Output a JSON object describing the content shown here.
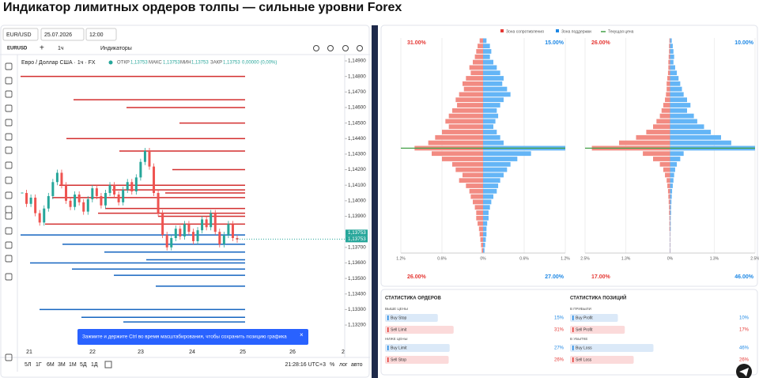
{
  "page_title": "Индикатор лимитных ордеров толпы — сильные уровни Forex",
  "price_chart": {
    "toolbar": {
      "pair": "EUR/USD",
      "date": "25.07.2026",
      "time": "12:00",
      "symbol": "EURUSD",
      "interval": "1ч",
      "indicators": "Индикаторы"
    },
    "legend": {
      "name": "Евро / Доллар США · 1ч · FX",
      "open_label": "ОТКР",
      "open": "1,13753",
      "high_label": "МАКС",
      "high": "1,13753",
      "low_label": "МИН",
      "low": "1,13753",
      "close_label": "ЗАКР",
      "close": "1,13753",
      "change": "0,00000 (0,00%)"
    },
    "price_ticks": [
      {
        "value": 1.149,
        "label": "1,14900"
      },
      {
        "value": 1.148,
        "label": "1,14800"
      },
      {
        "value": 1.147,
        "label": "1,14700"
      },
      {
        "value": 1.146,
        "label": "1,14600"
      },
      {
        "value": 1.145,
        "label": "1,14500"
      },
      {
        "value": 1.144,
        "label": "1,14400"
      },
      {
        "value": 1.143,
        "label": "1,14300"
      },
      {
        "value": 1.142,
        "label": "1,14200"
      },
      {
        "value": 1.141,
        "label": "1,14100"
      },
      {
        "value": 1.14,
        "label": "1,14000"
      },
      {
        "value": 1.139,
        "label": "1,13900"
      },
      {
        "value": 1.137,
        "label": "1,13700"
      },
      {
        "value": 1.136,
        "label": "1,13600"
      },
      {
        "value": 1.135,
        "label": "1,13500"
      },
      {
        "value": 1.134,
        "label": "1,13400"
      },
      {
        "value": 1.133,
        "label": "1,13300"
      },
      {
        "value": 1.132,
        "label": "1,13200"
      }
    ],
    "dates": [
      "21",
      "22",
      "23",
      "24",
      "25",
      "26",
      "2"
    ],
    "current_price": {
      "value": 1.13753,
      "label": "1,13753"
    },
    "closes": [
      1.1405,
      1.1398,
      1.1402,
      1.1392,
      1.1386,
      1.1395,
      1.1403,
      1.1412,
      1.1418,
      1.141,
      1.14,
      1.1396,
      1.1404,
      1.1399,
      1.1393,
      1.1401,
      1.1408,
      1.1403,
      1.1397,
      1.1405,
      1.141,
      1.1404,
      1.1399,
      1.1407,
      1.1412,
      1.1406,
      1.1415,
      1.1425,
      1.1432,
      1.1422,
      1.1405,
      1.1392,
      1.1378,
      1.137,
      1.1376,
      1.1382,
      1.1377,
      1.1385,
      1.138,
      1.1374,
      1.1381,
      1.1388,
      1.1383,
      1.1392,
      1.138,
      1.1372,
      1.1378,
      1.1385,
      1.1376,
      1.1375
    ],
    "sell_levels": [
      1.148,
      1.1465,
      1.146,
      1.145,
      1.144,
      1.1432,
      1.142,
      1.141,
      1.1407,
      1.1405,
      1.1402,
      1.1395,
      1.139,
      1.1385,
      1.1392
    ],
    "buy_levels": [
      1.1378,
      1.1372,
      1.1367,
      1.1362,
      1.136,
      1.1356,
      1.1352,
      1.1345,
      1.133,
      1.1325,
      1.1322
    ],
    "hint": "Зажмите и держите Ctrl во время масштабирования, чтобы сохранить позицию графика",
    "periods": [
      "5Л",
      "1Г",
      "6М",
      "3М",
      "1М",
      "5Д",
      "1Д"
    ],
    "clock": "21:28:16 UTC+3",
    "scale_buttons": [
      "%",
      "лог",
      "авто"
    ]
  },
  "order_book": {
    "legend": [
      "Зона сопротивления",
      "Зона поддержки",
      "Текущая цена"
    ],
    "charts": [
      {
        "top_left": "31.00%",
        "top_right": "15.00%",
        "bottom_left": "26.00%",
        "bottom_right": "27.00%",
        "xlim": [
          -1.2,
          1.2
        ],
        "xticks": [
          {
            "value": -1.2,
            "label": "1.2%"
          },
          {
            "value": -0.6,
            "label": "0.6%"
          },
          {
            "value": 0,
            "label": "0%"
          },
          {
            "value": 0.6,
            "label": "0.6%"
          },
          {
            "value": 1.2,
            "label": "1.2%"
          }
        ],
        "resistance": [
          0.05,
          0.08,
          0.1,
          0.12,
          0.15,
          0.2,
          0.18,
          0.25,
          0.3,
          0.28,
          0.35,
          0.4,
          0.38,
          0.45,
          0.5,
          0.55,
          0.5,
          0.6,
          0.7,
          0.8,
          1.0,
          0.75,
          0.6,
          0.45,
          0.4,
          0.3,
          0.35,
          0.25,
          0.2,
          0.18,
          0.15,
          0.12,
          0.1,
          0.1,
          0.08,
          0.06,
          0.05,
          0.04,
          0.03,
          0.02
        ],
        "support": [
          0.05,
          0.1,
          0.12,
          0.1,
          0.15,
          0.2,
          0.25,
          0.3,
          0.28,
          0.35,
          0.4,
          0.3,
          0.25,
          0.2,
          0.22,
          0.18,
          0.15,
          0.2,
          0.25,
          0.3,
          1.2,
          0.7,
          0.5,
          0.4,
          0.35,
          0.3,
          0.25,
          0.22,
          0.2,
          0.15,
          0.12,
          0.1,
          0.08,
          0.08,
          0.06,
          0.05,
          0.05,
          0.04,
          0.03,
          0.02
        ]
      },
      {
        "top_left": "26.00%",
        "top_right": "10.00%",
        "bottom_left": "17.00%",
        "bottom_right": "46.00%",
        "xlim": [
          -2.5,
          2.5
        ],
        "xticks": [
          {
            "value": -2.5,
            "label": "2.5%"
          },
          {
            "value": -1.3,
            "label": "1.3%"
          },
          {
            "value": 0,
            "label": "0%"
          },
          {
            "value": 1.3,
            "label": "1.3%"
          },
          {
            "value": 2.5,
            "label": "2.5%"
          }
        ],
        "resistance": [
          0.02,
          0.03,
          0.03,
          0.04,
          0.05,
          0.05,
          0.06,
          0.08,
          0.1,
          0.1,
          0.12,
          0.15,
          0.2,
          0.25,
          0.3,
          0.4,
          0.5,
          0.7,
          1.0,
          1.5,
          2.3,
          0.8,
          0.5,
          0.3,
          0.2,
          0.15,
          0.1,
          0.08,
          0.06,
          0.05,
          0.04,
          0.03,
          0.03,
          0.02,
          0.02,
          0.02,
          0.01,
          0.01,
          0.01,
          0.01
        ],
        "support": [
          0.05,
          0.08,
          0.1,
          0.12,
          0.1,
          0.15,
          0.2,
          0.25,
          0.3,
          0.35,
          0.4,
          0.5,
          0.6,
          0.5,
          0.7,
          0.8,
          1.0,
          1.2,
          1.5,
          1.8,
          2.5,
          0.4,
          0.3,
          0.2,
          0.15,
          0.12,
          0.1,
          0.08,
          0.06,
          0.05,
          0.04,
          0.03,
          0.03,
          0.02,
          0.02,
          0.02,
          0.01,
          0.01,
          0.01,
          0.01
        ]
      }
    ]
  },
  "stats": [
    {
      "title": "СТАТИСТИКА ОРДЕРОВ",
      "groups": [
        {
          "label": "ВЫШЕ ЦЕНЫ",
          "rows": [
            {
              "name": "Buy Stop",
              "value": 15,
              "label": "15%"
            },
            {
              "name": "Sell Limit",
              "value": 31,
              "label": "31%"
            }
          ]
        },
        {
          "label": "НИЖЕ ЦЕНЫ",
          "rows": [
            {
              "name": "Buy Limit",
              "value": 27,
              "label": "27%"
            },
            {
              "name": "Sell Stop",
              "value": 26,
              "label": "26%"
            }
          ]
        }
      ]
    },
    {
      "title": "СТАТИСТИКА ПОЗИЦИЙ",
      "groups": [
        {
          "label": "В ПРИБЫЛИ",
          "rows": [
            {
              "name": "Buy Profit",
              "value": 10,
              "label": "10%"
            },
            {
              "name": "Sell Profit",
              "value": 17,
              "label": "17%"
            }
          ]
        },
        {
          "label": "В УБЫТКЕ",
          "rows": [
            {
              "name": "Buy Loss",
              "value": 46,
              "label": "46%"
            },
            {
              "name": "Sell Loss",
              "value": 26,
              "label": "26%"
            }
          ]
        }
      ]
    }
  ]
}
